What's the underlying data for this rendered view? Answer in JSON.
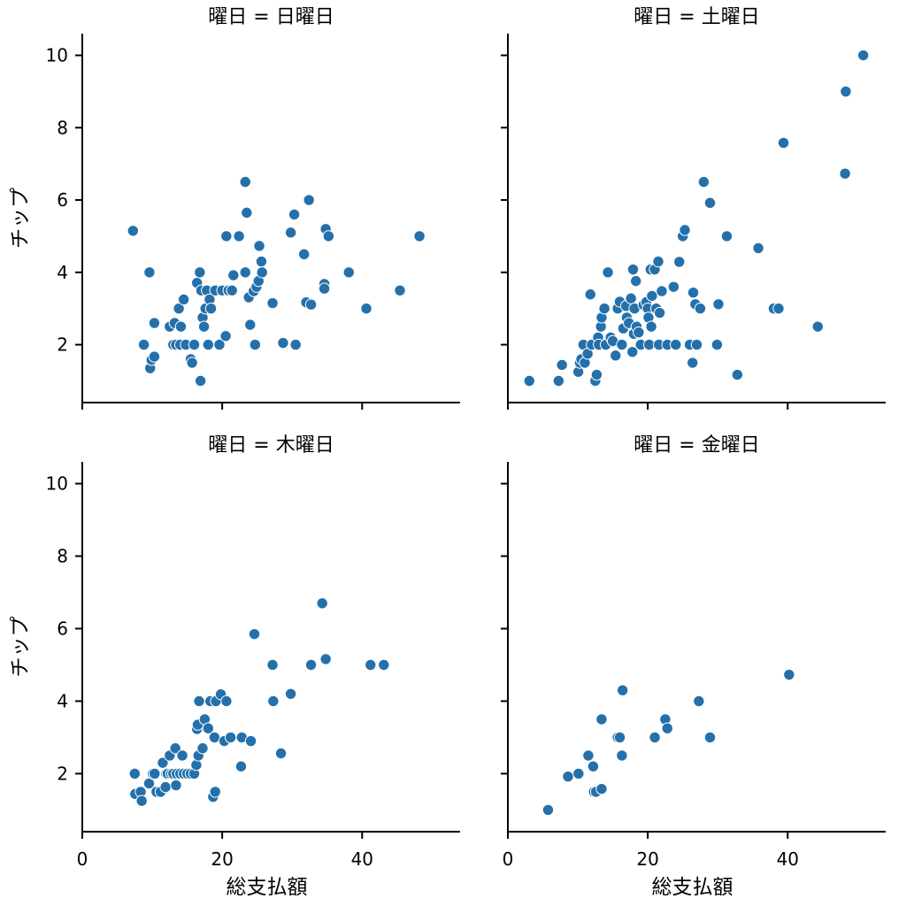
{
  "figure": {
    "xlabel": "総支払額",
    "ylabel": "チップ",
    "point_color": "#2470ab"
  },
  "chart_data": [
    {
      "type": "scatter",
      "title": "曜日 = 日曜日",
      "xlabel": "",
      "ylabel": "チップ",
      "xlim": [
        0,
        54
      ],
      "ylim": [
        0.4,
        10.6
      ],
      "x_ticks": [
        0,
        20,
        40
      ],
      "y_ticks": [
        2,
        4,
        6,
        8,
        10
      ],
      "points": [
        [
          7.25,
          5.15
        ],
        [
          9.6,
          4.0
        ],
        [
          8.8,
          2.0
        ],
        [
          10.3,
          2.6
        ],
        [
          9.7,
          1.35
        ],
        [
          9.9,
          1.58
        ],
        [
          10.3,
          1.67
        ],
        [
          12.5,
          2.5
        ],
        [
          13.0,
          2.0
        ],
        [
          13.2,
          2.6
        ],
        [
          13.4,
          2.0
        ],
        [
          13.8,
          3.0
        ],
        [
          14.0,
          2.0
        ],
        [
          14.1,
          2.5
        ],
        [
          14.5,
          3.25
        ],
        [
          14.8,
          2.0
        ],
        [
          15.5,
          1.6
        ],
        [
          15.7,
          1.5
        ],
        [
          16.0,
          2.0
        ],
        [
          16.4,
          3.71
        ],
        [
          16.8,
          4.0
        ],
        [
          17.0,
          3.5
        ],
        [
          16.9,
          1.0
        ],
        [
          17.2,
          2.75
        ],
        [
          17.4,
          2.5
        ],
        [
          17.6,
          3.0
        ],
        [
          17.8,
          3.5
        ],
        [
          18.0,
          2.0
        ],
        [
          18.2,
          3.25
        ],
        [
          18.4,
          3.0
        ],
        [
          19.0,
          3.5
        ],
        [
          19.6,
          2.0
        ],
        [
          20.0,
          3.5
        ],
        [
          20.5,
          2.24
        ],
        [
          20.6,
          5.0
        ],
        [
          20.9,
          3.5
        ],
        [
          21.4,
          3.5
        ],
        [
          21.6,
          3.92
        ],
        [
          22.4,
          5.0
        ],
        [
          23.3,
          4.0
        ],
        [
          23.3,
          6.5
        ],
        [
          23.5,
          5.65
        ],
        [
          23.8,
          3.31
        ],
        [
          24.0,
          2.55
        ],
        [
          24.5,
          3.48
        ],
        [
          24.7,
          2.0
        ],
        [
          24.9,
          3.6
        ],
        [
          25.2,
          3.76
        ],
        [
          25.3,
          4.73
        ],
        [
          25.6,
          4.3
        ],
        [
          25.7,
          4.0
        ],
        [
          27.2,
          3.15
        ],
        [
          28.7,
          2.05
        ],
        [
          29.8,
          5.1
        ],
        [
          30.3,
          5.6
        ],
        [
          30.5,
          2.0
        ],
        [
          31.7,
          4.5
        ],
        [
          32.0,
          3.17
        ],
        [
          32.4,
          6.0
        ],
        [
          32.7,
          3.11
        ],
        [
          34.6,
          3.68
        ],
        [
          34.6,
          3.55
        ],
        [
          34.8,
          5.2
        ],
        [
          35.2,
          5.0
        ],
        [
          38.1,
          4.0
        ],
        [
          40.6,
          3.0
        ],
        [
          45.4,
          3.5
        ],
        [
          48.2,
          5.0
        ]
      ]
    },
    {
      "type": "scatter",
      "title": "曜日 = 土曜日",
      "xlabel": "",
      "ylabel": "",
      "xlim": [
        0,
        54
      ],
      "ylim": [
        0.4,
        10.6
      ],
      "x_ticks": [
        0,
        20,
        40
      ],
      "y_ticks": [
        2,
        4,
        6,
        8,
        10
      ],
      "points": [
        [
          3.07,
          1.0
        ],
        [
          7.25,
          1.0
        ],
        [
          7.74,
          1.44
        ],
        [
          10.07,
          1.25
        ],
        [
          10.3,
          1.5
        ],
        [
          10.5,
          1.6
        ],
        [
          10.8,
          2.0
        ],
        [
          11.0,
          1.5
        ],
        [
          11.4,
          1.75
        ],
        [
          11.8,
          3.39
        ],
        [
          12.0,
          2.0
        ],
        [
          12.5,
          1.0
        ],
        [
          12.7,
          1.17
        ],
        [
          12.9,
          2.2
        ],
        [
          13.0,
          2.0
        ],
        [
          13.3,
          2.5
        ],
        [
          13.4,
          2.75
        ],
        [
          13.8,
          3.0
        ],
        [
          14.0,
          2.0
        ],
        [
          14.3,
          4.0
        ],
        [
          14.7,
          2.2
        ],
        [
          15.0,
          2.1
        ],
        [
          15.4,
          1.7
        ],
        [
          15.7,
          3.0
        ],
        [
          16.0,
          3.19
        ],
        [
          16.3,
          2.0
        ],
        [
          16.5,
          2.45
        ],
        [
          16.9,
          3.07
        ],
        [
          17.0,
          2.75
        ],
        [
          17.3,
          2.6
        ],
        [
          17.6,
          3.28
        ],
        [
          17.8,
          1.8
        ],
        [
          17.9,
          4.08
        ],
        [
          18.0,
          2.3
        ],
        [
          18.1,
          3.0
        ],
        [
          18.3,
          3.76
        ],
        [
          18.4,
          2.5
        ],
        [
          18.7,
          2.34
        ],
        [
          19.0,
          2.0
        ],
        [
          19.4,
          3.1
        ],
        [
          19.8,
          3.18
        ],
        [
          20.0,
          3.0
        ],
        [
          20.1,
          2.75
        ],
        [
          20.2,
          2.0
        ],
        [
          20.4,
          4.08
        ],
        [
          20.5,
          2.5
        ],
        [
          20.6,
          3.35
        ],
        [
          21.0,
          4.08
        ],
        [
          21.2,
          3.0
        ],
        [
          21.5,
          4.3
        ],
        [
          21.6,
          2.0
        ],
        [
          21.7,
          2.88
        ],
        [
          22.0,
          3.48
        ],
        [
          22.8,
          2.0
        ],
        [
          23.7,
          3.6
        ],
        [
          24.0,
          2.0
        ],
        [
          24.5,
          4.29
        ],
        [
          25.0,
          5.0
        ],
        [
          25.3,
          5.17
        ],
        [
          26.0,
          2.0
        ],
        [
          26.4,
          1.5
        ],
        [
          26.5,
          3.44
        ],
        [
          26.8,
          3.12
        ],
        [
          27.0,
          2.0
        ],
        [
          27.5,
          3.0
        ],
        [
          28.0,
          6.5
        ],
        [
          28.9,
          5.92
        ],
        [
          29.9,
          2.0
        ],
        [
          30.1,
          3.12
        ],
        [
          31.3,
          5.0
        ],
        [
          32.8,
          1.17
        ],
        [
          35.8,
          4.67
        ],
        [
          38.0,
          3.0
        ],
        [
          38.7,
          3.0
        ],
        [
          44.3,
          2.5
        ],
        [
          48.2,
          6.73
        ],
        [
          48.3,
          9.0
        ],
        [
          39.4,
          7.58
        ],
        [
          50.8,
          10.0
        ]
      ]
    },
    {
      "type": "scatter",
      "title": "曜日 = 木曜日",
      "xlabel": "総支払額",
      "ylabel": "チップ",
      "xlim": [
        0,
        54
      ],
      "ylim": [
        0.4,
        10.6
      ],
      "x_ticks": [
        0,
        20,
        40
      ],
      "y_ticks": [
        2,
        4,
        6,
        8,
        10
      ],
      "points": [
        [
          7.5,
          2.0
        ],
        [
          7.56,
          1.44
        ],
        [
          8.35,
          1.5
        ],
        [
          8.5,
          1.25
        ],
        [
          9.55,
          1.73
        ],
        [
          10.1,
          2.0
        ],
        [
          10.34,
          2.0
        ],
        [
          10.6,
          1.5
        ],
        [
          11.2,
          1.5
        ],
        [
          11.5,
          2.3
        ],
        [
          11.9,
          1.63
        ],
        [
          12.0,
          2.0
        ],
        [
          12.2,
          2.0
        ],
        [
          12.5,
          2.5
        ],
        [
          12.7,
          2.0
        ],
        [
          13.0,
          2.0
        ],
        [
          13.3,
          2.7
        ],
        [
          13.4,
          1.68
        ],
        [
          13.5,
          2.0
        ],
        [
          14.0,
          2.0
        ],
        [
          14.3,
          2.5
        ],
        [
          14.5,
          2.0
        ],
        [
          15.0,
          2.0
        ],
        [
          15.5,
          2.0
        ],
        [
          16.0,
          2.0
        ],
        [
          16.3,
          2.24
        ],
        [
          16.4,
          3.23
        ],
        [
          16.5,
          3.35
        ],
        [
          16.6,
          2.5
        ],
        [
          16.7,
          4.0
        ],
        [
          17.2,
          2.7
        ],
        [
          17.5,
          3.5
        ],
        [
          18.0,
          3.25
        ],
        [
          18.3,
          4.0
        ],
        [
          18.7,
          1.36
        ],
        [
          18.9,
          3.0
        ],
        [
          19.0,
          1.5
        ],
        [
          19.1,
          4.0
        ],
        [
          19.8,
          4.19
        ],
        [
          20.3,
          2.9
        ],
        [
          20.6,
          4.0
        ],
        [
          21.2,
          3.0
        ],
        [
          22.7,
          2.2
        ],
        [
          22.8,
          3.0
        ],
        [
          24.1,
          2.9
        ],
        [
          24.6,
          5.85
        ],
        [
          27.2,
          5.0
        ],
        [
          27.3,
          4.0
        ],
        [
          28.4,
          2.56
        ],
        [
          29.8,
          4.2
        ],
        [
          32.7,
          5.0
        ],
        [
          34.3,
          6.7
        ],
        [
          34.8,
          5.16
        ],
        [
          41.2,
          5.0
        ],
        [
          43.1,
          5.0
        ]
      ]
    },
    {
      "type": "scatter",
      "title": "曜日 = 金曜日",
      "xlabel": "総支払額",
      "ylabel": "",
      "xlim": [
        0,
        54
      ],
      "ylim": [
        0.4,
        10.6
      ],
      "x_ticks": [
        0,
        20,
        40
      ],
      "y_ticks": [
        2,
        4,
        6,
        8,
        10
      ],
      "points": [
        [
          5.75,
          1.0
        ],
        [
          8.6,
          1.92
        ],
        [
          10.1,
          2.0
        ],
        [
          11.5,
          2.5
        ],
        [
          12.2,
          2.2
        ],
        [
          12.3,
          1.5
        ],
        [
          12.6,
          1.5
        ],
        [
          13.4,
          3.5
        ],
        [
          13.4,
          1.58
        ],
        [
          15.7,
          3.0
        ],
        [
          16.0,
          3.0
        ],
        [
          16.3,
          2.5
        ],
        [
          16.4,
          4.3
        ],
        [
          21.0,
          3.0
        ],
        [
          22.5,
          3.5
        ],
        [
          22.8,
          3.25
        ],
        [
          27.3,
          4.0
        ],
        [
          28.9,
          3.0
        ],
        [
          40.2,
          4.73
        ]
      ]
    }
  ]
}
